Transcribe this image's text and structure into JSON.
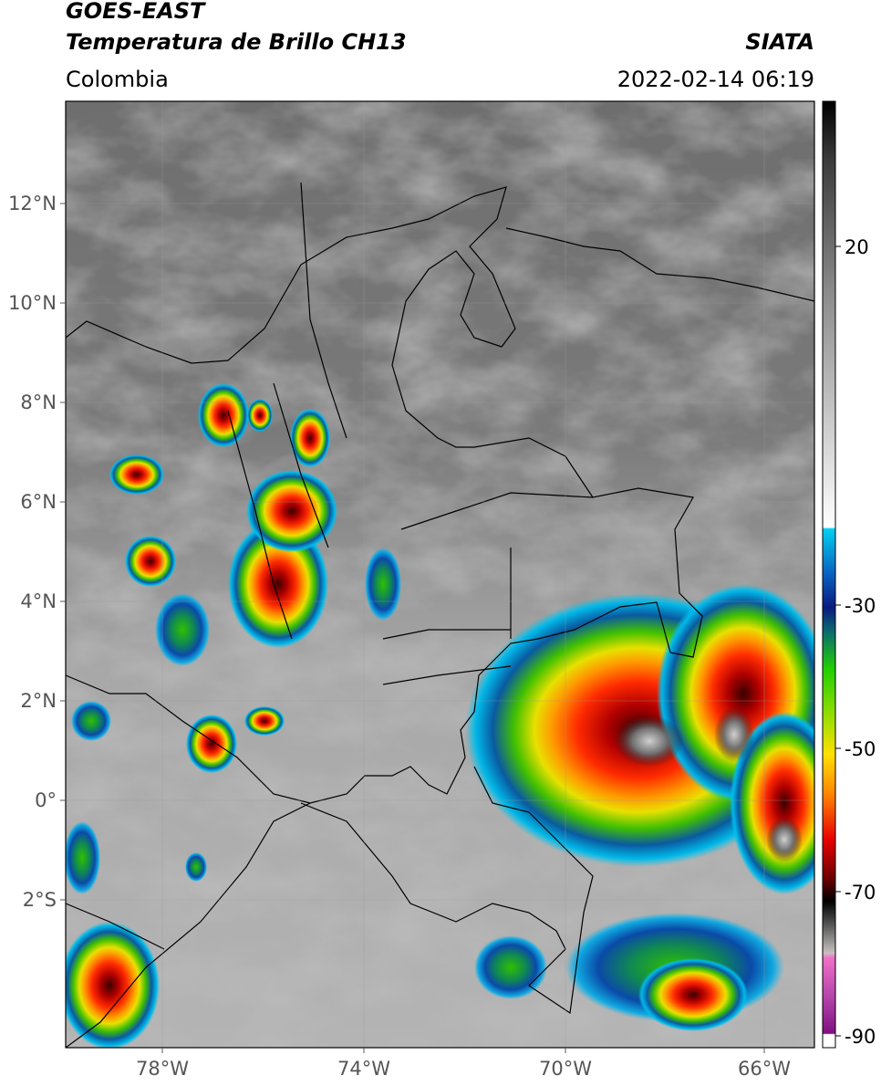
{
  "header": {
    "satellite": "GOES-EAST",
    "product": "Temperatura de Brillo CH13",
    "source": "SIATA",
    "region": "Colombia",
    "datetime": "2022-02-14 06:19"
  },
  "map": {
    "lat_ticks": [
      "12°N",
      "10°N",
      "8°N",
      "6°N",
      "4°N",
      "2°N",
      "0°",
      "2°S"
    ],
    "lon_ticks": [
      "78°W",
      "74°W",
      "70°W",
      "66°W"
    ]
  },
  "colorbar": {
    "ticks": [
      "20",
      "-30",
      "-50",
      "-70",
      "-90"
    ]
  }
}
